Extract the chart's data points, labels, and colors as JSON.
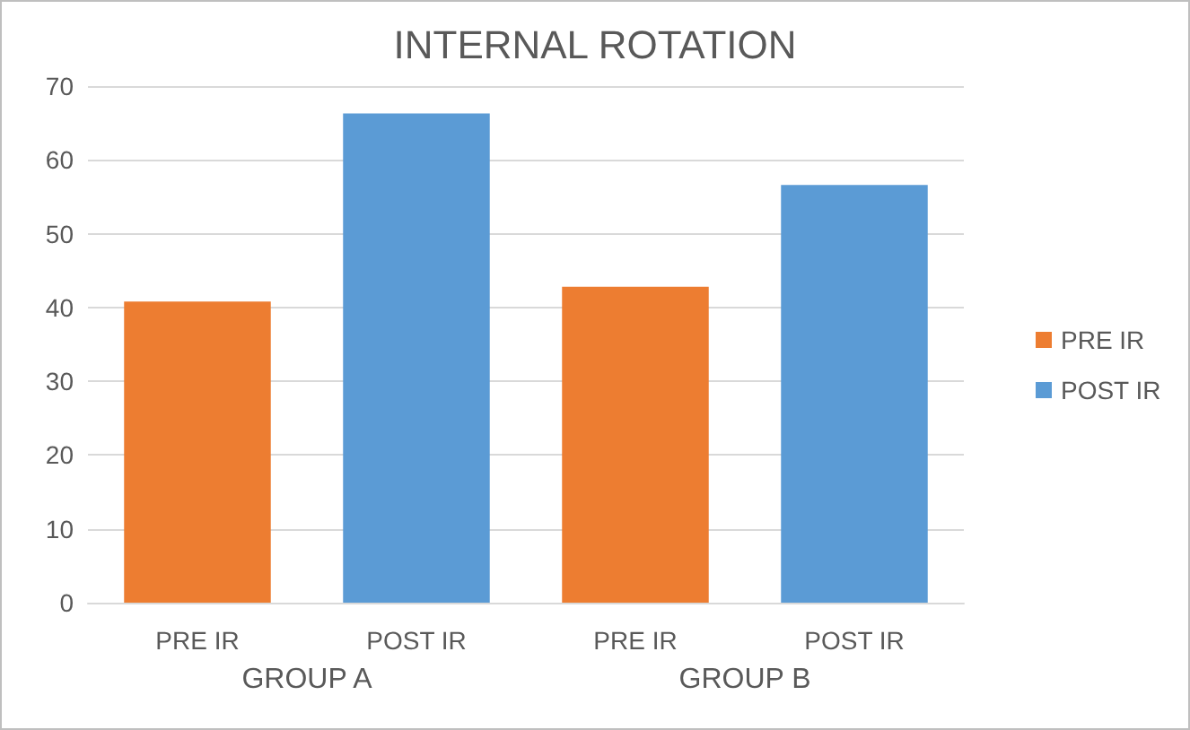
{
  "chart_data": {
    "type": "bar",
    "title": "INTERNAL ROTATION",
    "categories": [
      "PRE IR",
      "POST IR",
      "PRE IR",
      "POST IR"
    ],
    "series": [
      {
        "name": "PRE IR",
        "color": "#ed7d31",
        "values": [
          40.8,
          null,
          42.8,
          null
        ]
      },
      {
        "name": "POST IR",
        "color": "#5b9bd5",
        "values": [
          null,
          66.3,
          null,
          56.6
        ]
      }
    ],
    "annotations": [
      "GROUP A",
      "GROUP B"
    ],
    "ylim": [
      0,
      70
    ],
    "yticks": [
      0,
      10,
      20,
      30,
      40,
      50,
      60,
      70
    ],
    "grid": "y",
    "legend": "right"
  }
}
